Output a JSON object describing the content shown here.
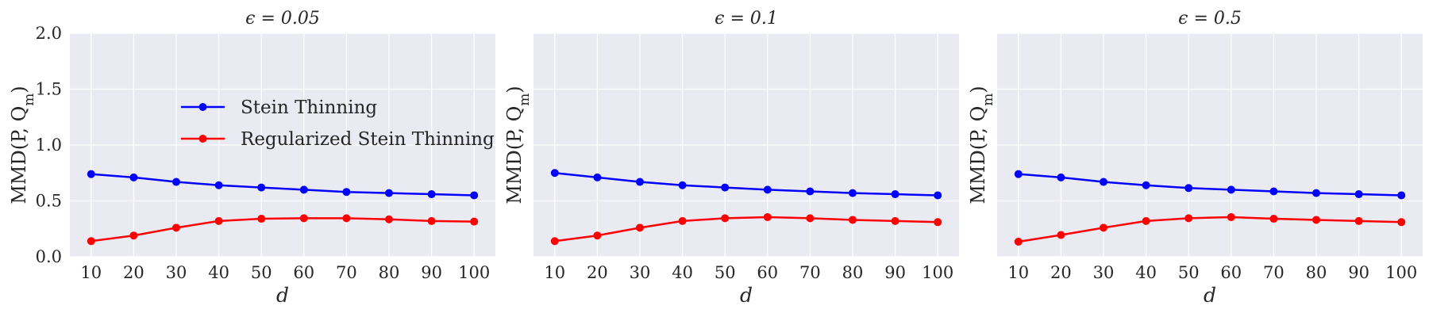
{
  "colors": {
    "panel_background": "#EAEAF2",
    "grid": "#FFFFFF",
    "stein": "#0000FF",
    "regularized": "#FF0000",
    "text": "#262626"
  },
  "legend": {
    "placement": "upper-center of first panel",
    "entries": [
      "Stein Thinning",
      "Regularized Stein Thinning"
    ]
  },
  "chart_data": [
    {
      "type": "line",
      "title": "ϵ = 0.05",
      "xlabel": "d",
      "ylabel": "MMD(P, Q_m)",
      "x": [
        10,
        20,
        30,
        40,
        50,
        60,
        70,
        80,
        90,
        100
      ],
      "xlim": [
        5,
        105
      ],
      "ylim": [
        0,
        2
      ],
      "yticks": [
        "0.0",
        "0.5",
        "1.0",
        "1.5",
        "2.0"
      ],
      "show_yticks": true,
      "show_legend": true,
      "grid": true,
      "series": [
        {
          "name": "Stein Thinning",
          "values": [
            0.74,
            0.71,
            0.67,
            0.64,
            0.62,
            0.6,
            0.58,
            0.57,
            0.56,
            0.55
          ]
        },
        {
          "name": "Regularized Stein Thinning",
          "values": [
            0.14,
            0.19,
            0.26,
            0.32,
            0.34,
            0.345,
            0.345,
            0.335,
            0.32,
            0.315
          ]
        }
      ]
    },
    {
      "type": "line",
      "title": "ϵ = 0.1",
      "xlabel": "d",
      "ylabel": "MMD(P, Q_m)",
      "x": [
        10,
        20,
        30,
        40,
        50,
        60,
        70,
        80,
        90,
        100
      ],
      "xlim": [
        5,
        105
      ],
      "ylim": [
        0,
        2
      ],
      "yticks": [
        "0.0",
        "0.5",
        "1.0",
        "1.5",
        "2.0"
      ],
      "show_yticks": false,
      "show_legend": false,
      "grid": true,
      "series": [
        {
          "name": "Stein Thinning",
          "values": [
            0.75,
            0.71,
            0.67,
            0.64,
            0.62,
            0.6,
            0.585,
            0.57,
            0.56,
            0.55
          ]
        },
        {
          "name": "Regularized Stein Thinning",
          "values": [
            0.14,
            0.19,
            0.26,
            0.32,
            0.345,
            0.355,
            0.345,
            0.33,
            0.32,
            0.31
          ]
        }
      ]
    },
    {
      "type": "line",
      "title": "ϵ = 0.5",
      "xlabel": "d",
      "ylabel": "MMD(P, Q_m)",
      "x": [
        10,
        20,
        30,
        40,
        50,
        60,
        70,
        80,
        90,
        100
      ],
      "xlim": [
        5,
        105
      ],
      "ylim": [
        0,
        2
      ],
      "yticks": [
        "0.0",
        "0.5",
        "1.0",
        "1.5",
        "2.0"
      ],
      "show_yticks": false,
      "show_legend": false,
      "grid": true,
      "series": [
        {
          "name": "Stein Thinning",
          "values": [
            0.74,
            0.71,
            0.67,
            0.64,
            0.615,
            0.6,
            0.585,
            0.57,
            0.56,
            0.55
          ]
        },
        {
          "name": "Regularized Stein Thinning",
          "values": [
            0.135,
            0.195,
            0.26,
            0.32,
            0.345,
            0.355,
            0.34,
            0.33,
            0.32,
            0.31
          ]
        }
      ]
    }
  ]
}
